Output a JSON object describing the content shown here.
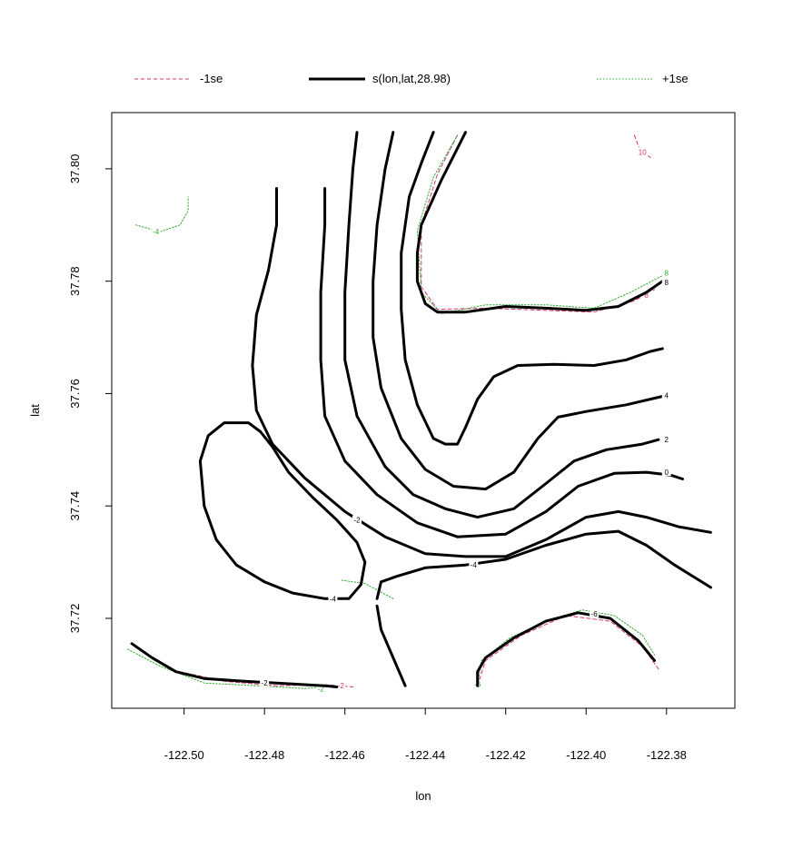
{
  "chart_data": {
    "type": "contour",
    "xlabel": "lon",
    "ylabel": "lat",
    "xlim": [
      -122.518,
      -122.363
    ],
    "ylim": [
      37.704,
      37.81
    ],
    "x_ticks": [
      {
        "value": -122.5,
        "label": "-122.50"
      },
      {
        "value": -122.48,
        "label": "-122.48"
      },
      {
        "value": -122.46,
        "label": "-122.46"
      },
      {
        "value": -122.44,
        "label": "-122.44"
      },
      {
        "value": -122.42,
        "label": "-122.42"
      },
      {
        "value": -122.4,
        "label": "-122.40"
      },
      {
        "value": -122.38,
        "label": "-122.38"
      }
    ],
    "y_ticks": [
      {
        "value": 37.72,
        "label": "37.72"
      },
      {
        "value": 37.74,
        "label": "37.74"
      },
      {
        "value": 37.76,
        "label": "37.76"
      },
      {
        "value": 37.78,
        "label": "37.78"
      },
      {
        "value": 37.8,
        "label": "37.80"
      }
    ],
    "legend": [
      {
        "label": "-1se",
        "color": "#d6336c",
        "style": "dashed",
        "id": "minus"
      },
      {
        "label": "s(lon,lat,28.98)",
        "color": "#000000",
        "style": "solid",
        "id": "fit"
      },
      {
        "label": "+1se",
        "color": "#33aa33",
        "style": "dotted",
        "id": "plus"
      }
    ],
    "fit_contours": [
      {
        "level": "8",
        "points": [
          [
            -122.43,
            37.8065
          ],
          [
            -122.436,
            37.798
          ],
          [
            -122.441,
            37.79
          ],
          [
            -122.442,
            37.785
          ],
          [
            -122.442,
            37.78
          ],
          [
            -122.44,
            37.776
          ],
          [
            -122.437,
            37.7745
          ],
          [
            -122.43,
            37.7745
          ],
          [
            -122.42,
            37.7755
          ],
          [
            -122.41,
            37.7752
          ],
          [
            -122.4,
            37.7748
          ],
          [
            -122.392,
            37.7755
          ],
          [
            -122.385,
            37.778
          ],
          [
            -122.381,
            37.78
          ]
        ],
        "labels": [
          {
            "text": "8",
            "x": -122.38,
            "y": 37.7798
          }
        ]
      },
      {
        "level": "6",
        "points": [
          [
            -122.438,
            37.8065
          ],
          [
            -122.441,
            37.801
          ],
          [
            -122.444,
            37.795
          ],
          [
            -122.446,
            37.785
          ],
          [
            -122.446,
            37.775
          ],
          [
            -122.445,
            37.766
          ],
          [
            -122.442,
            37.758
          ],
          [
            -122.438,
            37.752
          ],
          [
            -122.435,
            37.751
          ],
          [
            -122.432,
            37.751
          ],
          [
            -122.43,
            37.754
          ],
          [
            -122.427,
            37.759
          ],
          [
            -122.423,
            37.763
          ],
          [
            -122.417,
            37.765
          ],
          [
            -122.408,
            37.7652
          ],
          [
            -122.398,
            37.765
          ],
          [
            -122.39,
            37.766
          ],
          [
            -122.384,
            37.7675
          ],
          [
            -122.381,
            37.768
          ]
        ]
      },
      {
        "level": "4",
        "points": [
          [
            -122.448,
            37.8065
          ],
          [
            -122.45,
            37.8
          ],
          [
            -122.452,
            37.79
          ],
          [
            -122.453,
            37.78
          ],
          [
            -122.453,
            37.77
          ],
          [
            -122.451,
            37.761
          ],
          [
            -122.446,
            37.752
          ],
          [
            -122.44,
            37.7465
          ],
          [
            -122.433,
            37.7435
          ],
          [
            -122.425,
            37.743
          ],
          [
            -122.418,
            37.746
          ],
          [
            -122.412,
            37.752
          ],
          [
            -122.407,
            37.7558
          ],
          [
            -122.4,
            37.7568
          ],
          [
            -122.39,
            37.758
          ],
          [
            -122.381,
            37.7595
          ]
        ],
        "labels": [
          {
            "text": "4",
            "x": -122.38,
            "y": 37.7597
          }
        ]
      },
      {
        "level": "2",
        "points": [
          [
            -122.457,
            37.8065
          ],
          [
            -122.458,
            37.8
          ],
          [
            -122.459,
            37.79
          ],
          [
            -122.46,
            37.778
          ],
          [
            -122.46,
            37.766
          ],
          [
            -122.457,
            37.756
          ],
          [
            -122.45,
            37.747
          ],
          [
            -122.443,
            37.742
          ],
          [
            -122.435,
            37.7395
          ],
          [
            -122.427,
            37.738
          ],
          [
            -122.418,
            37.7395
          ],
          [
            -122.41,
            37.744
          ],
          [
            -122.403,
            37.748
          ],
          [
            -122.395,
            37.75
          ],
          [
            -122.386,
            37.751
          ],
          [
            -122.382,
            37.7518
          ]
        ],
        "labels": [
          {
            "text": "2",
            "x": -122.38,
            "y": 37.7518
          }
        ]
      },
      {
        "level": "0",
        "points": [
          [
            -122.465,
            37.7965
          ],
          [
            -122.465,
            37.79
          ],
          [
            -122.466,
            37.778
          ],
          [
            -122.466,
            37.766
          ],
          [
            -122.465,
            37.756
          ],
          [
            -122.46,
            37.748
          ],
          [
            -122.452,
            37.742
          ],
          [
            -122.442,
            37.737
          ],
          [
            -122.432,
            37.7345
          ],
          [
            -122.42,
            37.735
          ],
          [
            -122.41,
            37.739
          ],
          [
            -122.402,
            37.7435
          ],
          [
            -122.393,
            37.7458
          ],
          [
            -122.385,
            37.746
          ],
          [
            -122.379,
            37.7455
          ],
          [
            -122.376,
            37.7448
          ]
        ],
        "labels": [
          {
            "text": "0",
            "x": -122.38,
            "y": 37.746
          }
        ]
      },
      {
        "level": "-2",
        "points": [
          [
            -122.477,
            37.7965
          ],
          [
            -122.477,
            37.79
          ],
          [
            -122.479,
            37.782
          ],
          [
            -122.482,
            37.774
          ],
          [
            -122.483,
            37.765
          ],
          [
            -122.482,
            37.757
          ],
          [
            -122.478,
            37.751
          ],
          [
            -122.47,
            37.745
          ],
          [
            -122.46,
            37.739
          ],
          [
            -122.45,
            37.7345
          ],
          [
            -122.44,
            37.7315
          ],
          [
            -122.43,
            37.731
          ],
          [
            -122.42,
            37.731
          ],
          [
            -122.41,
            37.734
          ],
          [
            -122.4,
            37.738
          ],
          [
            -122.392,
            37.739
          ],
          [
            -122.385,
            37.738
          ],
          [
            -122.377,
            37.7363
          ],
          [
            -122.369,
            37.7353
          ]
        ],
        "labels": [
          {
            "text": "-2",
            "x": -122.457,
            "y": 37.7375
          }
        ]
      },
      {
        "level": "-4",
        "points": [
          [
            -122.452,
            37.7235
          ],
          [
            -122.451,
            37.7265
          ],
          [
            -122.447,
            37.7275
          ],
          [
            -122.44,
            37.729
          ],
          [
            -122.43,
            37.7295
          ],
          [
            -122.42,
            37.7305
          ],
          [
            -122.41,
            37.733
          ],
          [
            -122.4,
            37.735
          ],
          [
            -122.392,
            37.7355
          ],
          [
            -122.385,
            37.733
          ],
          [
            -122.378,
            37.7295
          ],
          [
            -122.369,
            37.7255
          ]
        ],
        "labels": [
          {
            "text": "-4",
            "x": -122.428,
            "y": 37.7295
          }
        ]
      },
      {
        "level": "-4",
        "points": [
          [
            -122.455,
            37.73
          ],
          [
            -122.457,
            37.7335
          ],
          [
            -122.462,
            37.7375
          ],
          [
            -122.468,
            37.7415
          ],
          [
            -122.474,
            37.746
          ],
          [
            -122.478,
            37.7505
          ],
          [
            -122.481,
            37.7532
          ],
          [
            -122.484,
            37.7548
          ],
          [
            -122.49,
            37.7548
          ],
          [
            -122.494,
            37.7525
          ],
          [
            -122.496,
            37.748
          ],
          [
            -122.495,
            37.74
          ],
          [
            -122.492,
            37.734
          ],
          [
            -122.487,
            37.7295
          ],
          [
            -122.48,
            37.7265
          ],
          [
            -122.473,
            37.7245
          ],
          [
            -122.465,
            37.7235
          ],
          [
            -122.459,
            37.7235
          ],
          [
            -122.456,
            37.726
          ],
          [
            -122.455,
            37.73
          ]
        ],
        "labels": [
          {
            "text": "-4",
            "x": -122.463,
            "y": 37.7235
          }
        ]
      },
      {
        "level": "-4",
        "points": [
          [
            -122.452,
            37.7222
          ],
          [
            -122.451,
            37.718
          ],
          [
            -122.448,
            37.713
          ],
          [
            -122.445,
            37.708
          ]
        ]
      },
      {
        "level": "-2",
        "points": [
          [
            -122.513,
            37.7155
          ],
          [
            -122.508,
            37.713
          ],
          [
            -122.502,
            37.7105
          ],
          [
            -122.495,
            37.7093
          ],
          [
            -122.485,
            37.7088
          ],
          [
            -122.477,
            37.7085
          ],
          [
            -122.465,
            37.708
          ],
          [
            -122.462,
            37.7078
          ]
        ],
        "labels": [
          {
            "text": "-2",
            "x": -122.48,
            "y": 37.7085
          }
        ]
      },
      {
        "level": "-6",
        "points": [
          [
            -122.427,
            37.708
          ],
          [
            -122.427,
            37.7105
          ],
          [
            -122.425,
            37.713
          ],
          [
            -122.418,
            37.7165
          ],
          [
            -122.41,
            37.7195
          ],
          [
            -122.402,
            37.721
          ],
          [
            -122.394,
            37.72
          ],
          [
            -122.387,
            37.716
          ],
          [
            -122.383,
            37.7125
          ]
        ],
        "labels": [
          {
            "text": "-6",
            "x": -122.398,
            "y": 37.7208
          }
        ]
      }
    ],
    "minus_contours": [
      {
        "points": [
          [
            -122.388,
            37.806
          ],
          [
            -122.387,
            37.804
          ],
          [
            -122.385,
            37.8025
          ],
          [
            -122.384,
            37.802
          ]
        ],
        "labels": [
          {
            "text": "10",
            "x": -122.386,
            "y": 37.803
          }
        ]
      },
      {
        "points": [
          [
            -122.432,
            37.806
          ],
          [
            -122.437,
            37.799
          ],
          [
            -122.441,
            37.79
          ],
          [
            -122.441,
            37.779
          ],
          [
            -122.437,
            37.775
          ],
          [
            -122.425,
            37.7752
          ],
          [
            -122.41,
            37.7748
          ],
          [
            -122.398,
            37.7745
          ],
          [
            -122.388,
            37.7765
          ],
          [
            -122.383,
            37.7785
          ]
        ],
        "labels": [
          {
            "text": "8",
            "x": -122.385,
            "y": 37.7775
          }
        ]
      },
      {
        "points": [
          [
            -122.512,
            37.715
          ],
          [
            -122.503,
            37.7108
          ],
          [
            -122.49,
            37.7088
          ],
          [
            -122.477,
            37.708
          ],
          [
            -122.465,
            37.7082
          ],
          [
            -122.458,
            37.7078
          ]
        ],
        "labels": [
          {
            "text": "-2",
            "x": -122.461,
            "y": 37.708
          }
        ]
      },
      {
        "points": [
          [
            -122.427,
            37.708
          ],
          [
            -122.425,
            37.7125
          ],
          [
            -122.416,
            37.717
          ],
          [
            -122.405,
            37.7205
          ],
          [
            -122.394,
            37.7195
          ],
          [
            -122.386,
            37.715
          ],
          [
            -122.382,
            37.711
          ]
        ]
      }
    ],
    "plus_contours": [
      {
        "points": [
          [
            -122.512,
            37.79
          ],
          [
            -122.506,
            37.7888
          ],
          [
            -122.501,
            37.79
          ],
          [
            -122.499,
            37.7925
          ],
          [
            -122.499,
            37.795
          ]
        ],
        "labels": [
          {
            "text": "-4",
            "x": -122.507,
            "y": 37.7888
          }
        ]
      },
      {
        "points": [
          [
            -122.432,
            37.806
          ],
          [
            -122.438,
            37.7985
          ],
          [
            -122.442,
            37.789
          ],
          [
            -122.441,
            37.778
          ],
          [
            -122.436,
            37.7742
          ],
          [
            -122.425,
            37.7758
          ],
          [
            -122.41,
            37.7758
          ],
          [
            -122.398,
            37.7752
          ],
          [
            -122.389,
            37.778
          ],
          [
            -122.381,
            37.781
          ]
        ],
        "labels": [
          {
            "text": "8",
            "x": -122.38,
            "y": 37.7815
          }
        ]
      },
      {
        "points": [
          [
            -122.514,
            37.7145
          ],
          [
            -122.506,
            37.7115
          ],
          [
            -122.495,
            37.7085
          ],
          [
            -122.482,
            37.708
          ],
          [
            -122.47,
            37.7075
          ],
          [
            -122.463,
            37.708
          ]
        ],
        "labels": [
          {
            "text": "-2",
            "x": -122.466,
            "y": 37.7075
          }
        ]
      },
      {
        "points": [
          [
            -122.448,
            37.7235
          ],
          [
            -122.455,
            37.7262
          ],
          [
            -122.461,
            37.7268
          ]
        ]
      },
      {
        "points": [
          [
            -122.427,
            37.708
          ],
          [
            -122.426,
            37.7125
          ],
          [
            -122.419,
            37.7165
          ],
          [
            -122.41,
            37.7195
          ],
          [
            -122.401,
            37.7215
          ],
          [
            -122.393,
            37.7205
          ],
          [
            -122.386,
            37.717
          ],
          [
            -122.383,
            37.7135
          ]
        ],
        "labels": [
          {
            "text": "-6",
            "x": -122.427,
            "y": 37.7083
          }
        ]
      }
    ]
  }
}
